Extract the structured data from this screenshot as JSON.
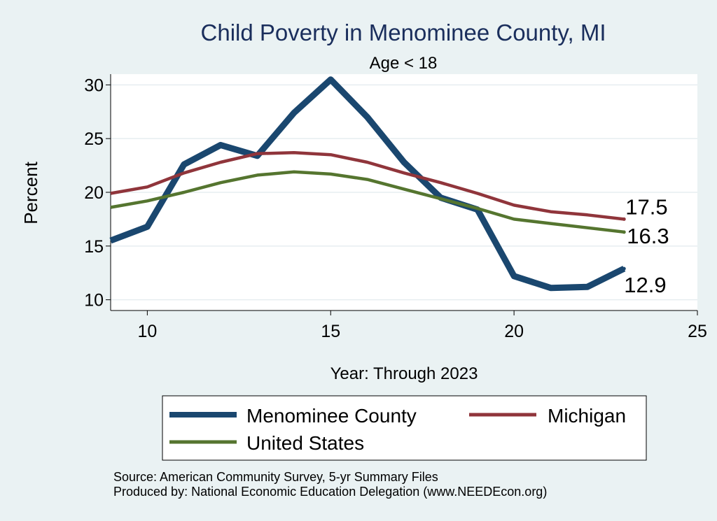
{
  "chart_data": {
    "type": "line",
    "title": "Child Poverty in Menominee County, MI",
    "subtitle": "Age < 18",
    "xlabel": "Year: Through 2023",
    "ylabel": "Percent",
    "xlim": [
      9,
      25
    ],
    "ylim": [
      9,
      31
    ],
    "xticks": [
      10,
      15,
      20,
      25
    ],
    "yticks": [
      10,
      15,
      20,
      25,
      30
    ],
    "grid": true,
    "x": [
      9,
      10,
      11,
      12,
      13,
      14,
      15,
      16,
      17,
      18,
      19,
      20,
      21,
      22,
      23
    ],
    "series": [
      {
        "name": "Menominee County",
        "color": "#1a476f",
        "values": [
          15.5,
          16.8,
          22.6,
          24.4,
          23.4,
          27.4,
          30.5,
          27.0,
          22.8,
          19.5,
          18.4,
          12.2,
          11.1,
          11.2,
          12.9
        ],
        "end_label": "12.9"
      },
      {
        "name": "Michigan",
        "color": "#90353b",
        "values": [
          19.9,
          20.5,
          21.8,
          22.8,
          23.6,
          23.7,
          23.5,
          22.8,
          21.8,
          20.9,
          19.9,
          18.8,
          18.2,
          17.9,
          17.5
        ],
        "end_label": "17.5"
      },
      {
        "name": "United States",
        "color": "#55752f",
        "values": [
          18.6,
          19.2,
          20.0,
          20.9,
          21.6,
          21.9,
          21.7,
          21.2,
          20.3,
          19.4,
          18.5,
          17.5,
          17.1,
          16.7,
          16.3
        ],
        "end_label": "16.3"
      }
    ],
    "legend": {
      "position": "bottom",
      "items": [
        "Menominee County",
        "Michigan",
        "United States"
      ]
    },
    "notes": [
      "Source: American Community Survey, 5-yr Summary Files",
      "Produced by: National Economic Education Delegation (www.NEEDEcon.org)"
    ]
  }
}
